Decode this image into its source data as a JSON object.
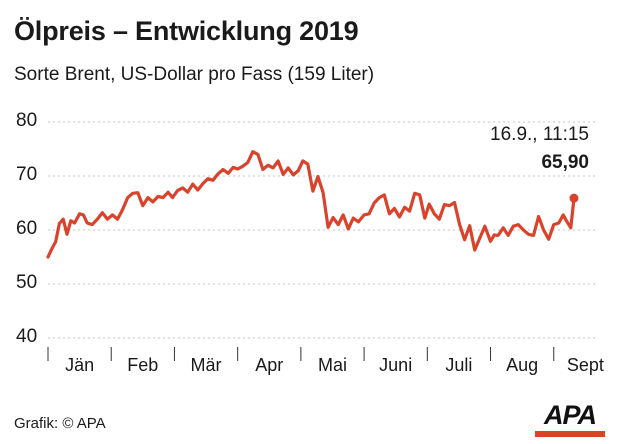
{
  "colors": {
    "line": "#d9432c",
    "grid": "#c7c7c7",
    "text": "#1a1a1a",
    "logo_bar": "#d9432c"
  },
  "source": "Grafik: © APA",
  "logo": "APA",
  "chart_data": {
    "type": "line",
    "title": "Ölpreis – Entwicklung 2019",
    "subtitle": "Sorte Brent, US-Dollar pro Fass (159 Liter)",
    "xlabel": "",
    "ylabel": "",
    "ylim": [
      40,
      80
    ],
    "yticks": [
      40,
      50,
      60,
      70,
      80
    ],
    "xlim": [
      0,
      8.7
    ],
    "month_labels": [
      "Jän",
      "Feb",
      "Mär",
      "Apr",
      "Mai",
      "Juni",
      "Juli",
      "Aug",
      "Sept"
    ],
    "grid": true,
    "annotation": {
      "date": "16.9., 11:15",
      "value": "65,90"
    },
    "series": [
      {
        "x": [
          0,
          0.06,
          0.12,
          0.18,
          0.24,
          0.3,
          0.36,
          0.42,
          0.5,
          0.56,
          0.62,
          0.7,
          0.78,
          0.86,
          0.94,
          1.02,
          1.1,
          1.18,
          1.26,
          1.34,
          1.42,
          1.5,
          1.58,
          1.66,
          1.74,
          1.82,
          1.9,
          1.97,
          2.05,
          2.13,
          2.21,
          2.29,
          2.37,
          2.45,
          2.53,
          2.61,
          2.69,
          2.77,
          2.85,
          2.93,
          3.0,
          3.08,
          3.16,
          3.24,
          3.32,
          3.4,
          3.48,
          3.56,
          3.64,
          3.72,
          3.8,
          3.88,
          3.96,
          4.03,
          4.11,
          4.19,
          4.27,
          4.35,
          4.43,
          4.51,
          4.59,
          4.67,
          4.75,
          4.83,
          4.91,
          5.0,
          5.08,
          5.16,
          5.24,
          5.32,
          5.4,
          5.48,
          5.56,
          5.64,
          5.72,
          5.8,
          5.88,
          5.96,
          6.03,
          6.11,
          6.19,
          6.27,
          6.35,
          6.43,
          6.51,
          6.59,
          6.67,
          6.75,
          6.83,
          6.91,
          7.0,
          7.06,
          7.12,
          7.2,
          7.28,
          7.36,
          7.44,
          7.52,
          7.6,
          7.68,
          7.76,
          7.84,
          7.92,
          8.0,
          8.08,
          8.15,
          8.2,
          8.27,
          8.32
        ],
        "values": [
          55.0,
          56.5,
          57.8,
          61.2,
          62.0,
          59.2,
          61.7,
          61.3,
          63.0,
          62.8,
          61.3,
          61.0,
          62.0,
          63.2,
          62.0,
          62.8,
          62.0,
          63.8,
          66.0,
          66.8,
          66.9,
          64.5,
          66.0,
          65.2,
          66.2,
          66.0,
          67.0,
          66.0,
          67.3,
          67.8,
          67.0,
          68.5,
          67.4,
          68.6,
          69.5,
          69.2,
          70.4,
          71.2,
          70.5,
          71.6,
          71.3,
          71.8,
          72.5,
          74.5,
          74.0,
          71.2,
          72.0,
          71.5,
          72.8,
          70.3,
          71.5,
          70.2,
          71.0,
          72.8,
          72.2,
          67.2,
          69.9,
          67.0,
          60.5,
          62.3,
          61.0,
          62.8,
          60.2,
          62.2,
          61.5,
          62.8,
          63.0,
          65.0,
          66.0,
          66.5,
          63.0,
          64.0,
          62.4,
          64.2,
          63.5,
          66.8,
          66.5,
          62.2,
          64.8,
          63.0,
          62.0,
          64.7,
          64.5,
          65.1,
          61.0,
          58.2,
          60.8,
          56.3,
          58.5,
          60.7,
          57.9,
          59.1,
          59.0,
          60.4,
          59.0,
          60.7,
          61.0,
          60.0,
          59.2,
          59.0,
          62.5,
          60.0,
          58.3,
          61.0,
          61.3,
          62.8,
          61.7,
          60.4,
          65.9
        ]
      }
    ]
  }
}
